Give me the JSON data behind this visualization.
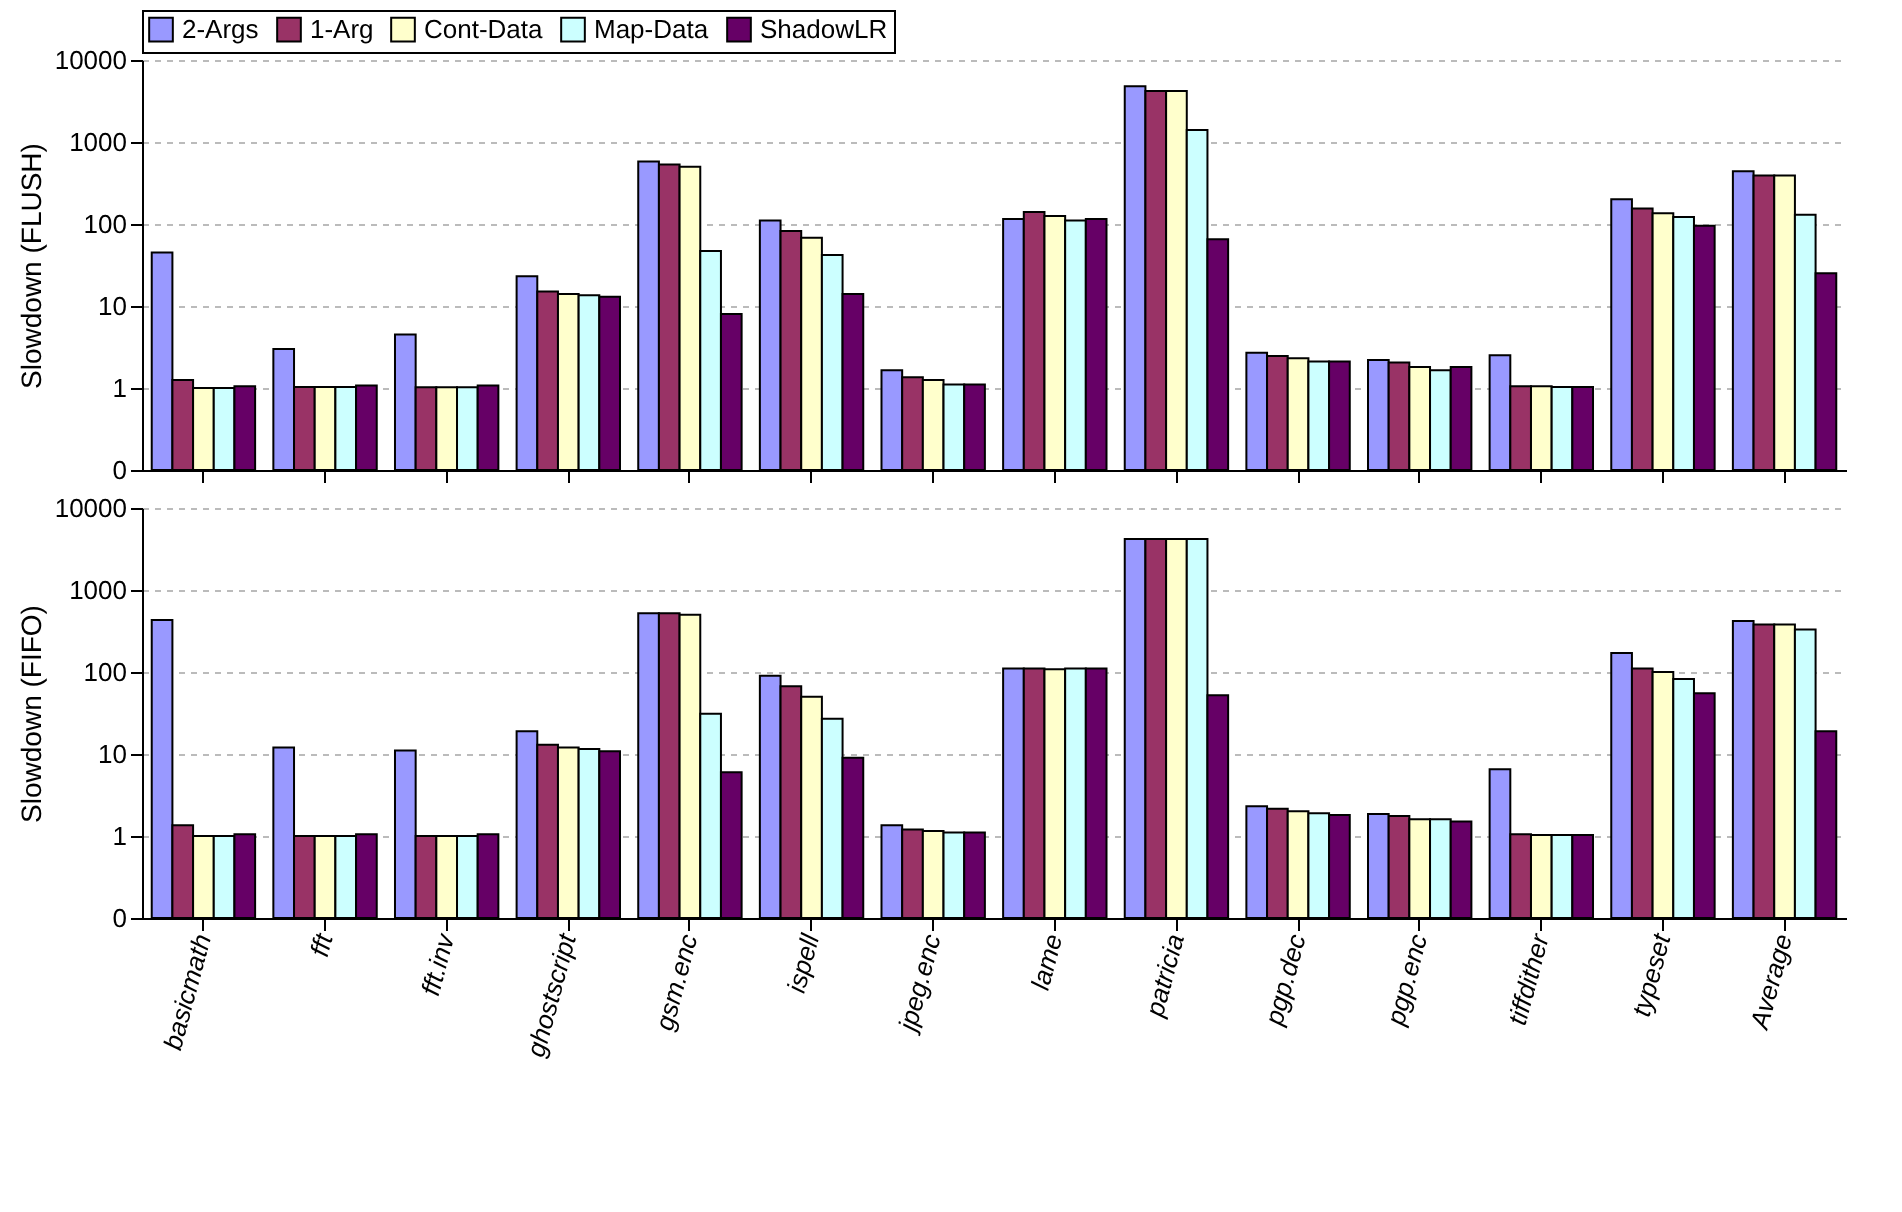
{
  "chart_data": [
    {
      "type": "bar",
      "ylabel": "Slowdown (FLUSH)",
      "categories": [
        null,
        null,
        null,
        null,
        null,
        null,
        null,
        null,
        null,
        null,
        null,
        null,
        null,
        null
      ],
      "series": [
        {
          "name": "2-Args",
          "color": "#9999ff",
          "values": [
            45,
            3.0,
            4.5,
            23,
            580,
            110,
            1.65,
            115,
            4800,
            2.7,
            2.2,
            2.5,
            200,
            440
          ]
        },
        {
          "name": "1-Arg",
          "color": "#993366",
          "values": [
            1.25,
            1.03,
            1.02,
            15,
            530,
            82,
            1.35,
            140,
            4200,
            2.45,
            2.05,
            1.05,
            155,
            390
          ]
        },
        {
          "name": "Cont-Data",
          "color": "#ffffcc",
          "values": [
            1.0,
            1.03,
            1.02,
            14,
            500,
            68,
            1.25,
            125,
            4200,
            2.3,
            1.8,
            1.05,
            135,
            390
          ]
        },
        {
          "name": "Map-Data",
          "color": "#ccffff",
          "values": [
            1.0,
            1.03,
            1.02,
            13.5,
            47,
            42,
            1.1,
            110,
            1400,
            2.1,
            1.65,
            1.03,
            122,
            130
          ]
        },
        {
          "name": "ShadowLR",
          "color": "#660066",
          "values": [
            1.05,
            1.07,
            1.07,
            13,
            8,
            14,
            1.1,
            115,
            65,
            2.1,
            1.8,
            1.03,
            95,
            25
          ]
        }
      ],
      "log": "y",
      "ylim": [
        0.1,
        10000
      ],
      "yticks": [
        {
          "value": 0.1,
          "label": "0"
        },
        1,
        10,
        100,
        1000,
        10000
      ],
      "grid": "y",
      "legend": "top left",
      "tick_labels": "y"
    },
    {
      "type": "bar",
      "ylabel": "Slowdown (FIFO)",
      "categories": [
        "basicmath",
        "fft",
        "fft.inv",
        "ghostscript",
        "gsm.enc",
        "ispell",
        "jpeg.enc",
        "lame",
        "patricia",
        "pgp.dec",
        "pgp.enc",
        "tiffdither",
        "typeset",
        "Average"
      ],
      "series": [
        {
          "color": "#9999ff",
          "values": [
            430,
            12,
            11,
            19,
            520,
            90,
            1.35,
            110,
            4200,
            2.3,
            1.85,
            6.5,
            170,
            420
          ]
        },
        {
          "color": "#993366",
          "values": [
            1.35,
            1.0,
            1.0,
            13,
            520,
            67,
            1.2,
            110,
            4200,
            2.15,
            1.75,
            1.05,
            110,
            380
          ]
        },
        {
          "color": "#ffffcc",
          "values": [
            1.0,
            1.0,
            1.0,
            12,
            500,
            50,
            1.15,
            108,
            4200,
            2.0,
            1.6,
            1.03,
            100,
            380
          ]
        },
        {
          "color": "#ccffff",
          "values": [
            1.0,
            1.0,
            1.0,
            11.5,
            31,
            27,
            1.1,
            110,
            4200,
            1.9,
            1.6,
            1.03,
            82,
            330
          ]
        },
        {
          "color": "#660066",
          "values": [
            1.05,
            1.05,
            1.05,
            10.8,
            6,
            9,
            1.1,
            110,
            52,
            1.8,
            1.5,
            1.03,
            55,
            19
          ]
        }
      ],
      "log": "y",
      "ylim": [
        0.1,
        10000
      ],
      "yticks": [
        {
          "value": 0.1,
          "label": "0"
        },
        1,
        10,
        100,
        1000,
        10000
      ],
      "grid": "y"
    }
  ]
}
